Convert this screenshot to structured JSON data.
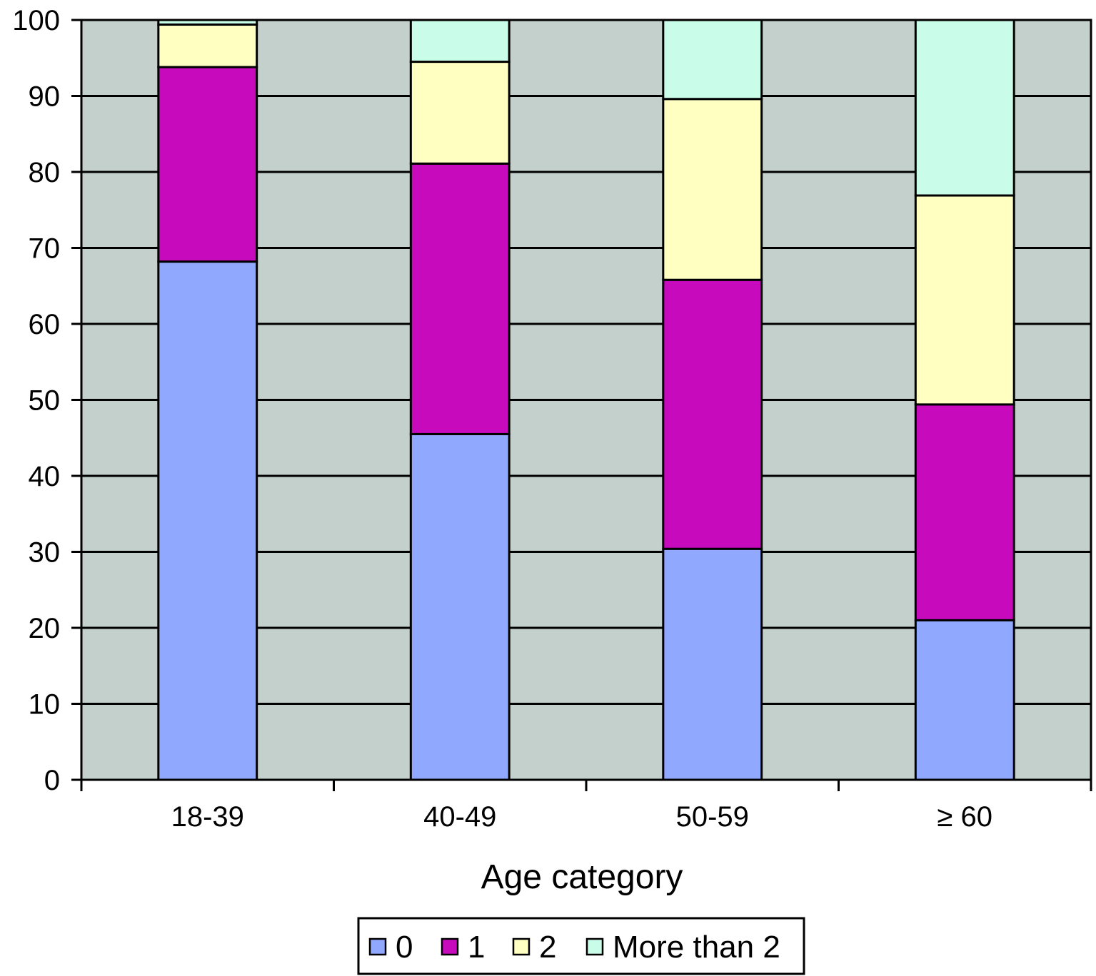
{
  "chart_data": {
    "type": "bar",
    "stacked": true,
    "title": "",
    "xlabel": "Age category",
    "ylabel": "",
    "categories": [
      "18-39",
      "40-49",
      "50-59",
      "≥ 60"
    ],
    "ylim": [
      0,
      100
    ],
    "yticks": [
      0,
      10,
      20,
      30,
      40,
      50,
      60,
      70,
      80,
      90,
      100
    ],
    "grid": true,
    "legend_position": "bottom",
    "series": [
      {
        "name": "0",
        "color": "#91a8ff",
        "values": [
          68.2,
          45.5,
          30.4,
          21.0
        ]
      },
      {
        "name": "1",
        "color": "#c80abd",
        "values": [
          25.6,
          35.6,
          35.4,
          28.4
        ]
      },
      {
        "name": "2",
        "color": "#ffffc2",
        "values": [
          5.6,
          13.4,
          23.8,
          27.5
        ]
      },
      {
        "name": "More than 2",
        "color": "#c9fce9",
        "values": [
          0.6,
          5.5,
          10.4,
          23.1
        ]
      }
    ]
  },
  "plot_background": "#c4d0cc"
}
